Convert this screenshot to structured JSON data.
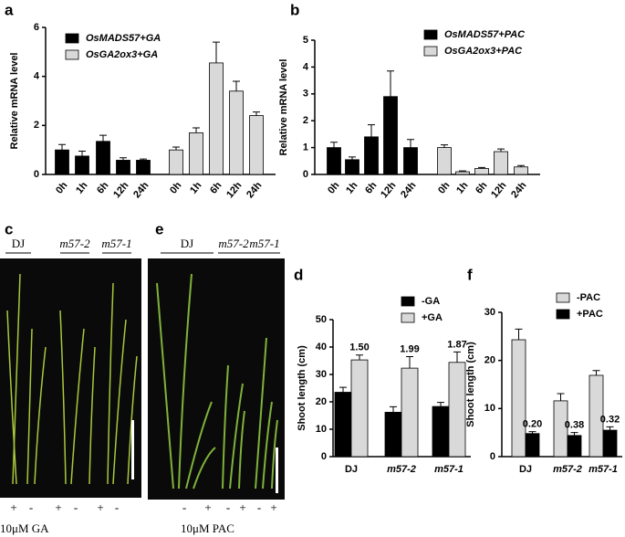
{
  "chart_data": [
    {
      "type": "bar",
      "panel": "a",
      "ylabel": "Relative mRNA level",
      "categories": [
        "0h",
        "1h",
        "6h",
        "12h",
        "24h",
        "0h",
        "1h",
        "6h",
        "12h",
        "24h"
      ],
      "series": [
        {
          "name": "OsMADS57+GA",
          "color": "#000000",
          "values": [
            1.0,
            0.75,
            1.35,
            0.58,
            0.58,
            null,
            null,
            null,
            null,
            null
          ],
          "errors": [
            0.22,
            0.2,
            0.25,
            0.1,
            0.05,
            null,
            null,
            null,
            null,
            null
          ]
        },
        {
          "name": "OsGA2ox3+GA",
          "color": "#d9d9d9",
          "values": [
            null,
            null,
            null,
            null,
            null,
            1.0,
            1.7,
            4.55,
            3.4,
            2.4
          ],
          "errors": [
            null,
            null,
            null,
            null,
            null,
            0.12,
            0.2,
            0.85,
            0.4,
            0.15
          ]
        }
      ],
      "ylim": [
        0,
        6
      ],
      "yticks": [
        0,
        2,
        4,
        6
      ]
    },
    {
      "type": "bar",
      "panel": "b",
      "ylabel": "Relative mRNA level",
      "categories": [
        "0h",
        "1h",
        "6h",
        "12h",
        "24h",
        "0h",
        "1h",
        "6h",
        "12h",
        "24h"
      ],
      "series": [
        {
          "name": "OsMADS57+PAC",
          "color": "#000000",
          "values": [
            1.0,
            0.55,
            1.4,
            2.9,
            1.0,
            null,
            null,
            null,
            null,
            null
          ],
          "errors": [
            0.2,
            0.1,
            0.45,
            0.95,
            0.3,
            null,
            null,
            null,
            null,
            null
          ]
        },
        {
          "name": "OsGA2ox3+PAC",
          "color": "#d9d9d9",
          "values": [
            null,
            null,
            null,
            null,
            null,
            1.0,
            0.1,
            0.22,
            0.85,
            0.28
          ],
          "errors": [
            null,
            null,
            null,
            null,
            null,
            0.1,
            0.03,
            0.04,
            0.1,
            0.05
          ]
        }
      ],
      "ylim": [
        0,
        5
      ],
      "yticks": [
        0,
        1,
        2,
        3,
        4,
        5
      ]
    },
    {
      "type": "bar",
      "panel": "d",
      "ylabel": "Shoot length (cm)",
      "categories": [
        "DJ",
        "m57-2",
        "m57-1"
      ],
      "series": [
        {
          "name": "-GA",
          "color": "#000000",
          "values": [
            23.5,
            16.2,
            18.3
          ],
          "errors": [
            1.8,
            2.0,
            1.5
          ]
        },
        {
          "name": "+GA",
          "color": "#d9d9d9",
          "values": [
            35.3,
            32.3,
            34.4
          ],
          "errors": [
            1.8,
            4.2,
            3.8
          ],
          "annotations": [
            "1.50",
            "1.99",
            "1.87"
          ]
        }
      ],
      "ylim": [
        0,
        50
      ],
      "yticks": [
        0,
        10,
        20,
        30,
        40,
        50
      ]
    },
    {
      "type": "bar",
      "panel": "f",
      "ylabel": "Shoot length (cm)",
      "categories": [
        "DJ",
        "m57-2",
        "m57-1"
      ],
      "series": [
        {
          "name": "-PAC",
          "color": "#d9d9d9",
          "values": [
            24.3,
            11.6,
            16.9
          ],
          "errors": [
            2.2,
            1.5,
            1.0
          ]
        },
        {
          "name": "+PAC",
          "color": "#000000",
          "values": [
            4.8,
            4.4,
            5.5
          ],
          "errors": [
            0.4,
            0.6,
            0.7
          ],
          "annotations": [
            "0.20",
            "0.38",
            "0.32"
          ]
        }
      ],
      "ylim": [
        0,
        30
      ],
      "yticks": [
        0,
        10,
        20,
        30
      ]
    }
  ],
  "photos": [
    {
      "panel": "c",
      "groups": [
        "DJ",
        "m57-2",
        "m57-1"
      ],
      "treatments": [
        "+",
        "-",
        "+",
        "-",
        "+",
        "-"
      ],
      "caption": "10μM GA"
    },
    {
      "panel": "e",
      "groups": [
        "DJ",
        "m57-2",
        "m57-1"
      ],
      "treatments": [
        "-",
        "+",
        "-",
        "+",
        "-",
        "+"
      ],
      "caption": "10μM PAC"
    }
  ]
}
